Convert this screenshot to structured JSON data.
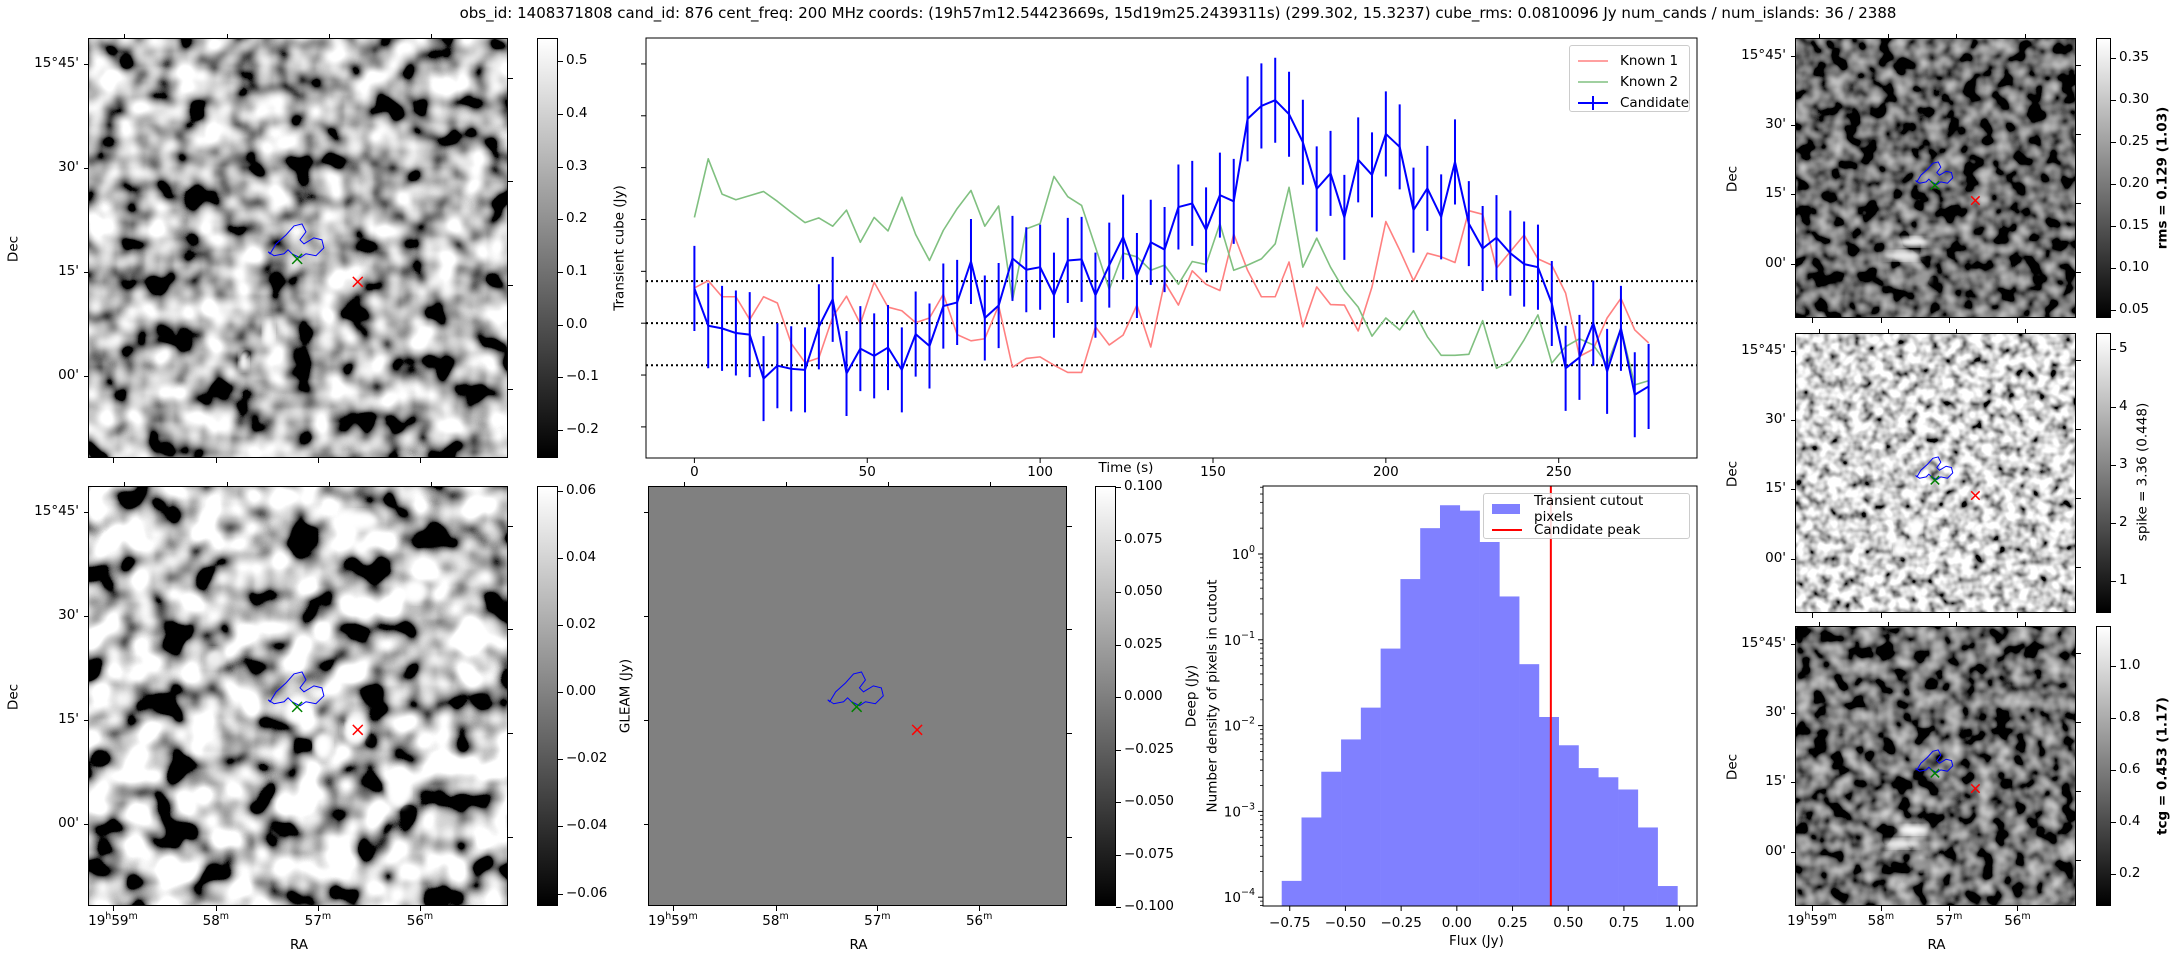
{
  "title": "obs_id: 1408371808 cand_id: 876 cent_freq: 200 MHz coords: (19h57m12.54423669s, 15d19m25.2439311s) (299.302, 15.3237) cube_rms: 0.0810096 Jy num_cands / num_islands: 36 / 2388",
  "colors": {
    "known1": "#ff8080",
    "known2": "#80c080",
    "candidate": "#0000ff",
    "hist": "#8080ff",
    "peak": "#ff0000",
    "green_marker": "#008000",
    "red_marker": "#ff0000",
    "contour": "#0000ff"
  },
  "axes_text": {
    "dec": "Dec",
    "ra": "RA"
  },
  "dec_labels": [
    "15°45'",
    "30'",
    "15'",
    "00'"
  ],
  "ra_labels": [
    [
      "19",
      "h",
      "59",
      "m"
    ],
    [
      "58",
      "m"
    ],
    [
      "57",
      "m"
    ],
    [
      "56",
      "m"
    ]
  ],
  "panels": {
    "transient": {
      "colorbar_label": "Transient cube (Jy)",
      "cbar_range": [
        -0.255,
        0.542
      ],
      "cbar_ticks": [
        {
          "v": 0.5,
          "t": "0.5"
        },
        {
          "v": 0.4,
          "t": "0.4"
        },
        {
          "v": 0.3,
          "t": "0.3"
        },
        {
          "v": 0.2,
          "t": "0.2"
        },
        {
          "v": 0.1,
          "t": "0.1"
        },
        {
          "v": 0.0,
          "t": "0.0"
        },
        {
          "v": -0.1,
          "t": "−0.1"
        },
        {
          "v": -0.2,
          "t": "−0.2"
        }
      ]
    },
    "gleam": {
      "colorbar_label": "GLEAM (Jy)",
      "cbar_range": [
        -0.064,
        0.0612
      ],
      "cbar_ticks": [
        {
          "v": 0.06,
          "t": "0.06"
        },
        {
          "v": 0.04,
          "t": "0.04"
        },
        {
          "v": 0.02,
          "t": "0.02"
        },
        {
          "v": 0.0,
          "t": "0.00"
        },
        {
          "v": -0.02,
          "t": "−0.02"
        },
        {
          "v": -0.04,
          "t": "−0.04"
        },
        {
          "v": -0.06,
          "t": "−0.06"
        }
      ]
    },
    "deep": {
      "colorbar_label": "Deep (Jy)",
      "cbar_range": [
        -0.1,
        0.1
      ],
      "cbar_ticks": [
        {
          "v": 0.1,
          "t": "0.100"
        },
        {
          "v": 0.075,
          "t": "0.075"
        },
        {
          "v": 0.05,
          "t": "0.050"
        },
        {
          "v": 0.025,
          "t": "0.025"
        },
        {
          "v": 0.0,
          "t": "0.000"
        },
        {
          "v": -0.025,
          "t": "−0.025"
        },
        {
          "v": -0.05,
          "t": "−0.050"
        },
        {
          "v": -0.075,
          "t": "−0.075"
        },
        {
          "v": -0.1,
          "t": "−0.100"
        }
      ]
    },
    "rms": {
      "colorbar_label": "rms = 0.129 (1.03)",
      "cbar_range": [
        0.039,
        0.373
      ],
      "cbar_ticks": [
        {
          "v": 0.35,
          "t": "0.35"
        },
        {
          "v": 0.3,
          "t": "0.30"
        },
        {
          "v": 0.25,
          "t": "0.25"
        },
        {
          "v": 0.2,
          "t": "0.20"
        },
        {
          "v": 0.15,
          "t": "0.15"
        },
        {
          "v": 0.1,
          "t": "0.10"
        },
        {
          "v": 0.05,
          "t": "0.05"
        }
      ]
    },
    "spike": {
      "colorbar_label": "spike = 3.36 (0.448)",
      "cbar_range": [
        0.43,
        5.26
      ],
      "cbar_ticks": [
        {
          "v": 5,
          "t": "5"
        },
        {
          "v": 4,
          "t": "4"
        },
        {
          "v": 3,
          "t": "3"
        },
        {
          "v": 2,
          "t": "2"
        },
        {
          "v": 1,
          "t": "1"
        }
      ]
    },
    "tcg": {
      "colorbar_label": "tcg = 0.453 (1.17)",
      "cbar_range": [
        0.073,
        1.15
      ],
      "cbar_ticks": [
        {
          "v": 1.0,
          "t": "1.0"
        },
        {
          "v": 0.8,
          "t": "0.8"
        },
        {
          "v": 0.6,
          "t": "0.6"
        },
        {
          "v": 0.4,
          "t": "0.4"
        },
        {
          "v": 0.2,
          "t": "0.2"
        }
      ]
    }
  },
  "chart_data": [
    {
      "type": "line",
      "title": "",
      "xlabel": "Time (s)",
      "ylabel": "",
      "xlim": [
        -14,
        290
      ],
      "ylim": [
        -0.26,
        0.55
      ],
      "x_ticks": [
        0,
        50,
        100,
        150,
        200,
        250
      ],
      "y_ticks": [
        -0.2,
        -0.1,
        0.0,
        0.1,
        0.2,
        0.3,
        0.4,
        0.5
      ],
      "hlines": [
        0.0810096,
        0.0,
        -0.0810096
      ],
      "legend": [
        "Known 1",
        "Known 2",
        "Candidate"
      ],
      "legend_position": "top-right",
      "x": [
        0,
        4,
        8,
        12,
        16,
        20,
        24,
        28,
        32,
        36,
        40,
        44,
        48,
        52,
        56,
        60,
        64,
        68,
        72,
        76,
        80,
        84,
        88,
        92,
        96,
        100,
        104,
        108,
        112,
        116,
        120,
        124,
        128,
        132,
        136,
        140,
        144,
        148,
        152,
        156,
        160,
        164,
        168,
        172,
        176,
        180,
        184,
        188,
        192,
        196,
        200,
        204,
        208,
        212,
        216,
        220,
        224,
        228,
        232,
        236,
        240,
        244,
        248,
        252,
        256,
        260,
        264,
        268,
        272,
        276
      ],
      "series": [
        {
          "name": "Known 1",
          "values": [
            0.068,
            0.082,
            0.051,
            0.051,
            0.007,
            0.051,
            0.039,
            -0.039,
            -0.076,
            -0.067,
            0.012,
            0.052,
            -0.001,
            0.079,
            0.031,
            0.024,
            0.001,
            0.01,
            0.056,
            -0.022,
            -0.034,
            -0.03,
            0.034,
            -0.085,
            -0.068,
            -0.065,
            -0.081,
            -0.095,
            -0.095,
            -0.007,
            -0.042,
            -0.023,
            0.035,
            -0.046,
            0.079,
            0.035,
            0.101,
            0.075,
            0.063,
            0.172,
            0.102,
            0.051,
            0.051,
            0.118,
            -0.007,
            0.07,
            0.036,
            0.035,
            -0.015,
            0.07,
            0.196,
            0.141,
            0.082,
            0.135,
            0.128,
            0.117,
            0.217,
            0.21,
            0.106,
            0.138,
            0.17,
            0.124,
            0.112,
            0.058,
            -0.064,
            -0.05,
            0.01,
            0.048,
            -0.013,
            -0.038
          ]
        },
        {
          "name": "Known 2",
          "values": [
            0.204,
            0.317,
            0.249,
            0.238,
            0.246,
            0.254,
            0.235,
            0.214,
            0.194,
            0.203,
            0.187,
            0.218,
            0.156,
            0.204,
            0.178,
            0.243,
            0.171,
            0.121,
            0.179,
            0.221,
            0.256,
            0.187,
            0.226,
            0.044,
            0.182,
            0.192,
            0.283,
            0.244,
            0.227,
            0.147,
            0.065,
            0.135,
            0.128,
            0.102,
            0.112,
            0.075,
            0.119,
            0.113,
            0.192,
            0.102,
            0.112,
            0.124,
            0.153,
            0.262,
            0.108,
            0.164,
            0.108,
            0.063,
            0.031,
            -0.025,
            0.01,
            -0.013,
            0.024,
            -0.026,
            -0.062,
            -0.062,
            -0.06,
            0.005,
            -0.087,
            -0.074,
            -0.032,
            0.016,
            -0.077,
            -0.045,
            -0.03,
            -0.042,
            -0.08,
            -0.01,
            -0.119,
            -0.111
          ]
        },
        {
          "name": "Candidate",
          "error": 0.082,
          "values": [
            0.067,
            -0.005,
            -0.01,
            -0.019,
            -0.022,
            -0.107,
            -0.082,
            -0.088,
            -0.09,
            -0.007,
            0.046,
            -0.097,
            -0.049,
            -0.063,
            -0.047,
            -0.09,
            -0.021,
            -0.044,
            0.033,
            0.04,
            0.119,
            0.01,
            0.034,
            0.125,
            0.103,
            0.108,
            0.054,
            0.121,
            0.123,
            0.054,
            0.112,
            0.166,
            0.092,
            0.156,
            0.142,
            0.224,
            0.231,
            0.18,
            0.247,
            0.235,
            0.394,
            0.419,
            0.43,
            0.403,
            0.349,
            0.259,
            0.289,
            0.204,
            0.315,
            0.286,
            0.365,
            0.34,
            0.218,
            0.26,
            0.205,
            0.311,
            0.192,
            0.144,
            0.165,
            0.135,
            0.114,
            0.108,
            0.038,
            -0.087,
            -0.066,
            0.0,
            -0.093,
            -0.01,
            -0.138,
            -0.122
          ]
        }
      ]
    },
    {
      "type": "bar",
      "title": "",
      "xlabel": "Flux (Jy)",
      "ylabel": "Number density of pixels in cutout",
      "yscale": "log",
      "xlim": [
        -0.87,
        1.078
      ],
      "ylim": [
        7.9e-05,
        6.2
      ],
      "x_ticks": [
        {
          "v": -0.75,
          "t": "−0.75"
        },
        {
          "v": -0.5,
          "t": "−0.50"
        },
        {
          "v": -0.25,
          "t": "−0.25"
        },
        {
          "v": 0,
          "t": "0.00"
        },
        {
          "v": 0.25,
          "t": "0.25"
        },
        {
          "v": 0.5,
          "t": "0.50"
        },
        {
          "v": 0.75,
          "t": "0.75"
        },
        {
          "v": 1.0,
          "t": "1.00"
        }
      ],
      "y_ticks": [
        {
          "v": 1,
          "b": "10",
          "e": "0"
        },
        {
          "v": 0.1,
          "b": "10",
          "e": "−1"
        },
        {
          "v": 0.01,
          "b": "10",
          "e": "−2"
        },
        {
          "v": 0.001,
          "b": "10",
          "e": "−3"
        },
        {
          "v": 0.0001,
          "b": "10",
          "e": "−4"
        }
      ],
      "bin_start": -0.786,
      "bin_width": 0.0888,
      "values": [
        0.000155,
        0.00085,
        0.0029,
        0.0069,
        0.0162,
        0.079,
        0.51,
        2.0,
        3.7,
        3.2,
        1.38,
        0.32,
        0.052,
        0.0126,
        0.0059,
        0.0032,
        0.0025,
        0.0018,
        0.00065,
        0.000135
      ],
      "candidate_peak": 0.422,
      "legend": [
        "Transient cutout pixels",
        "Candidate peak"
      ],
      "legend_position": "top-right"
    }
  ]
}
